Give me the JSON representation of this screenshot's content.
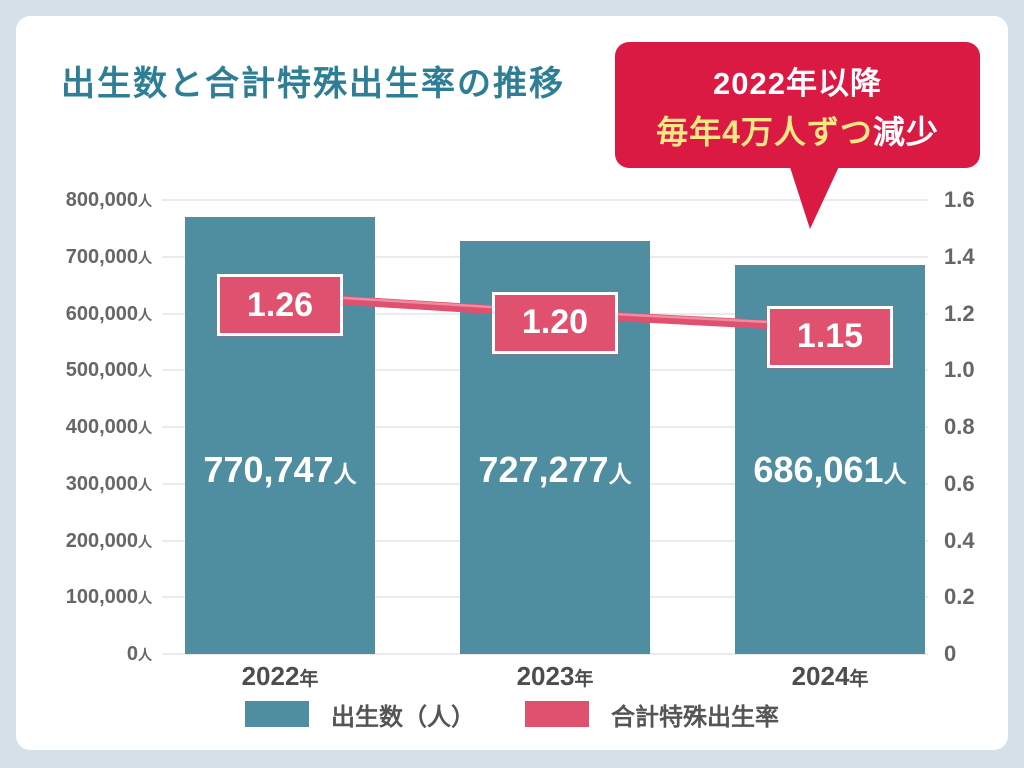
{
  "title": "出生数と合計特殊出生率の推移",
  "callout": {
    "line1": "2022年以降",
    "line2_highlight": "毎年4万人ずつ",
    "line2_rest": "減少",
    "bg_color": "#da1a42",
    "highlight_color": "#f6e985"
  },
  "legend": [
    {
      "label": "出生数（人）",
      "color": "#4e8ea0"
    },
    {
      "label": "合計特殊出生率",
      "color": "#e0516f"
    }
  ],
  "chart_data": {
    "type": "bar+line combo",
    "categories": [
      "2022",
      "2023",
      "2024"
    ],
    "category_suffix": "年",
    "series": [
      {
        "name": "出生数（人）",
        "type": "bar",
        "axis": "left",
        "values": [
          770747,
          727277,
          686061
        ],
        "labels": [
          "770,747",
          "727,277",
          "686,061"
        ],
        "label_unit": "人",
        "color": "#4e8ea0"
      },
      {
        "name": "合計特殊出生率",
        "type": "line",
        "axis": "right",
        "values": [
          1.26,
          1.2,
          1.15
        ],
        "labels": [
          "1.26",
          "1.20",
          "1.15"
        ],
        "color": "#e0516f"
      }
    ],
    "left_axis": {
      "unit": "人",
      "min": 0,
      "max": 800000,
      "step": 100000,
      "tick_values": [
        0,
        100000,
        200000,
        300000,
        400000,
        500000,
        600000,
        700000,
        800000
      ],
      "tick_labels": [
        "0",
        "100,000",
        "200,000",
        "300,000",
        "400,000",
        "500,000",
        "600,000",
        "700,000",
        "800,000"
      ]
    },
    "right_axis": {
      "min": 0,
      "max": 1.6,
      "step": 0.2,
      "tick_values": [
        0,
        0.2,
        0.4,
        0.6,
        0.8,
        1.0,
        1.2,
        1.4,
        1.6
      ],
      "tick_labels": [
        "0",
        "0.2",
        "0.4",
        "0.6",
        "0.8",
        "1.0",
        "1.2",
        "1.4",
        "1.6"
      ]
    },
    "grid": true,
    "legend_position": "bottom",
    "annotation": "2022年以降 毎年4万人ずつ減少"
  },
  "colors": {
    "background": "#d6e0e8",
    "card": "#ffffff",
    "title": "#2e7e95",
    "bar": "#4e8ea0",
    "line": "#e0516f",
    "grid": "#ebebeb",
    "axis_text": "#666666",
    "callout_bg": "#da1a42",
    "callout_highlight": "#f6e985"
  }
}
